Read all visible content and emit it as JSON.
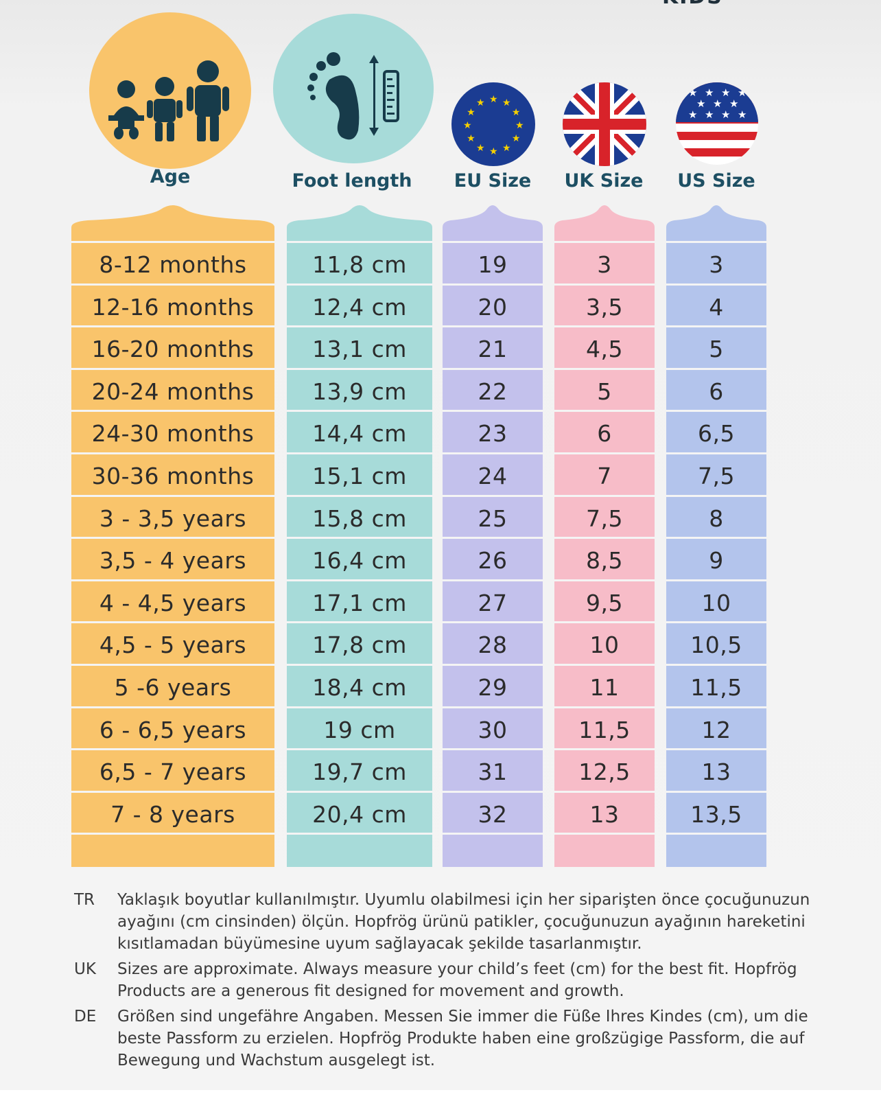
{
  "top_fragment": "KIDS",
  "headers": {
    "age": "Age",
    "foot": "Foot length",
    "eu": "EU Size",
    "uk": "UK Size",
    "us": "US Size"
  },
  "icons": {
    "age": "children-group-icon",
    "foot": "footprint-ruler-icon",
    "eu": "eu-flag-icon",
    "uk": "uk-flag-icon",
    "us": "us-flag-icon"
  },
  "colors": {
    "age": "#f9c46b",
    "foot": "#a7dbd9",
    "eu": "#c3c1ec",
    "uk": "#f7bcc8",
    "us": "#b3c4ec",
    "header_text": "#1d4f63"
  },
  "rows": [
    {
      "age": "8-12 months",
      "foot": "11,8 cm",
      "eu": "19",
      "uk": "3",
      "us": "3"
    },
    {
      "age": "12-16 months",
      "foot": "12,4 cm",
      "eu": "20",
      "uk": "3,5",
      "us": "4"
    },
    {
      "age": "16-20 months",
      "foot": "13,1 cm",
      "eu": "21",
      "uk": "4,5",
      "us": "5"
    },
    {
      "age": "20-24 months",
      "foot": "13,9 cm",
      "eu": "22",
      "uk": "5",
      "us": "6"
    },
    {
      "age": "24-30 months",
      "foot": "14,4 cm",
      "eu": "23",
      "uk": "6",
      "us": "6,5"
    },
    {
      "age": "30-36 months",
      "foot": "15,1 cm",
      "eu": "24",
      "uk": "7",
      "us": "7,5"
    },
    {
      "age": "3 - 3,5 years",
      "foot": "15,8 cm",
      "eu": "25",
      "uk": "7,5",
      "us": "8"
    },
    {
      "age": "3,5 - 4 years",
      "foot": "16,4 cm",
      "eu": "26",
      "uk": "8,5",
      "us": "9"
    },
    {
      "age": "4 - 4,5 years",
      "foot": "17,1 cm",
      "eu": "27",
      "uk": "9,5",
      "us": "10"
    },
    {
      "age": "4,5 - 5 years",
      "foot": "17,8 cm",
      "eu": "28",
      "uk": "10",
      "us": "10,5"
    },
    {
      "age": "5 -6 years",
      "foot": "18,4 cm",
      "eu": "29",
      "uk": "11",
      "us": "11,5"
    },
    {
      "age": "6 - 6,5 years",
      "foot": "19 cm",
      "eu": "30",
      "uk": "11,5",
      "us": "12"
    },
    {
      "age": "6,5 - 7 years",
      "foot": "19,7 cm",
      "eu": "31",
      "uk": "12,5",
      "us": "13"
    },
    {
      "age": "7 - 8 years",
      "foot": "20,4 cm",
      "eu": "32",
      "uk": "13",
      "us": "13,5"
    }
  ],
  "notes": [
    {
      "code": "TR",
      "text": "Yaklaşık boyutlar kullanılmıştır. Uyumlu olabilmesi için her siparişten önce çocuğunuzun ayağını (cm cinsinden) ölçün. Hopfrög ürünü patikler, çocuğunuzun ayağının hareketini kısıtlamadan büyümesine uyum sağlayacak şekilde tasarlanmıştır."
    },
    {
      "code": "UK",
      "text": "Sizes are approximate. Always measure your child’s feet (cm) for the best fit. Hopfrög Products are a generous fit designed for movement and growth."
    },
    {
      "code": "DE",
      "text": "Größen sind ungefähre Angaben. Messen Sie immer die Füße Ihres Kindes (cm), um die beste Passform zu erzielen. Hopfrög Produkte haben eine großzügige Passform, die auf Bewegung und Wachstum ausgelegt ist."
    }
  ]
}
